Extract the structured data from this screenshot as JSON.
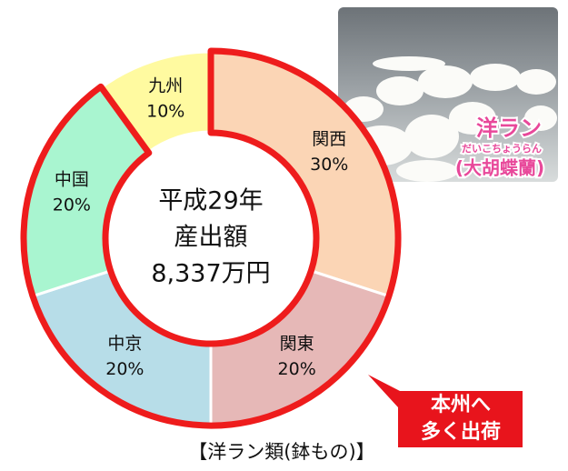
{
  "chart_data": {
    "type": "donut",
    "categories": [
      "関西",
      "関東",
      "中京",
      "中国",
      "九州"
    ],
    "values": [
      30,
      20,
      20,
      20,
      10
    ],
    "value_labels": [
      "30%",
      "20%",
      "20%",
      "20%",
      "10%"
    ],
    "colors": [
      "#fbd5b5",
      "#e6b8b7",
      "#b7dde8",
      "#a9f5d0",
      "#fffaa0"
    ],
    "highlight": [
      0,
      1,
      2,
      3
    ],
    "center_text": [
      "平成29年",
      "産出額",
      "8,337万円"
    ],
    "callout": [
      "本州へ",
      "多く出荷"
    ],
    "caption": "【洋ラン類(鉢もの)】",
    "photo": {
      "title": "洋ラン",
      "ruby": "だいこちょうらん",
      "subtitle": "(大胡蝶蘭)"
    }
  }
}
